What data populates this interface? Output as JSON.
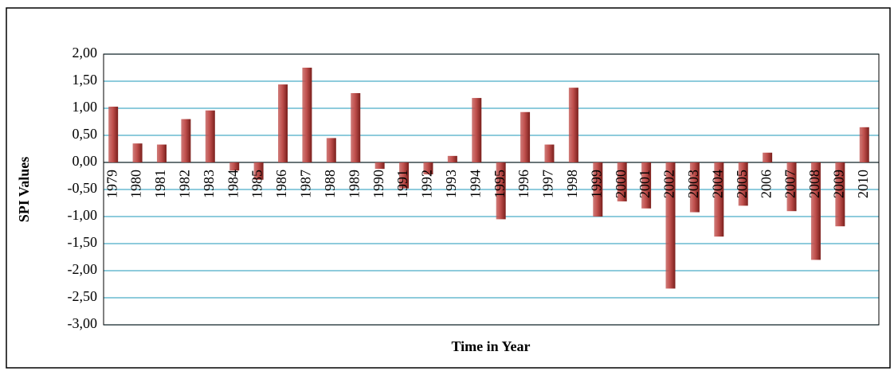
{
  "chart_data": {
    "type": "bar",
    "y_label": "SPI Values",
    "x_label": "Time in Year",
    "categories": [
      "1979",
      "1980",
      "1981",
      "1982",
      "1983",
      "1984",
      "1985",
      "1986",
      "1987",
      "1988",
      "1989",
      "1990",
      "1991",
      "1992",
      "1993",
      "1994",
      "1995",
      "1996",
      "1997",
      "1998",
      "1999",
      "2000",
      "2001",
      "2002",
      "2003",
      "2004",
      "2005",
      "2006",
      "2007",
      "2008",
      "2009",
      "2010"
    ],
    "values": [
      1.03,
      0.35,
      0.33,
      0.8,
      0.96,
      -0.15,
      -0.32,
      1.44,
      1.75,
      0.45,
      1.28,
      -0.12,
      -0.48,
      -0.22,
      0.12,
      1.19,
      -1.05,
      0.93,
      0.33,
      1.38,
      -1.0,
      -0.72,
      -0.85,
      -2.33,
      -0.92,
      -1.37,
      -0.8,
      0.18,
      -0.9,
      -1.8,
      -1.18,
      0.65
    ],
    "color": "#c0504d",
    "grid": true,
    "grid_color": "#4bacc6",
    "ylim": [
      -3,
      2
    ],
    "yticks": [
      {
        "value": -3,
        "label": "-3,00"
      },
      {
        "value": -2.5,
        "label": "-2,50"
      },
      {
        "value": -2,
        "label": "-2,00"
      },
      {
        "value": -1.5,
        "label": "-1,50"
      },
      {
        "value": -1,
        "label": "-1,00"
      },
      {
        "value": -0.5,
        "label": "-0,50"
      },
      {
        "value": 0,
        "label": "0,00"
      },
      {
        "value": 0.5,
        "label": "0,50"
      },
      {
        "value": 1,
        "label": "1,00"
      },
      {
        "value": 1.5,
        "label": "1,50"
      },
      {
        "value": 2,
        "label": "2,00"
      }
    ]
  }
}
